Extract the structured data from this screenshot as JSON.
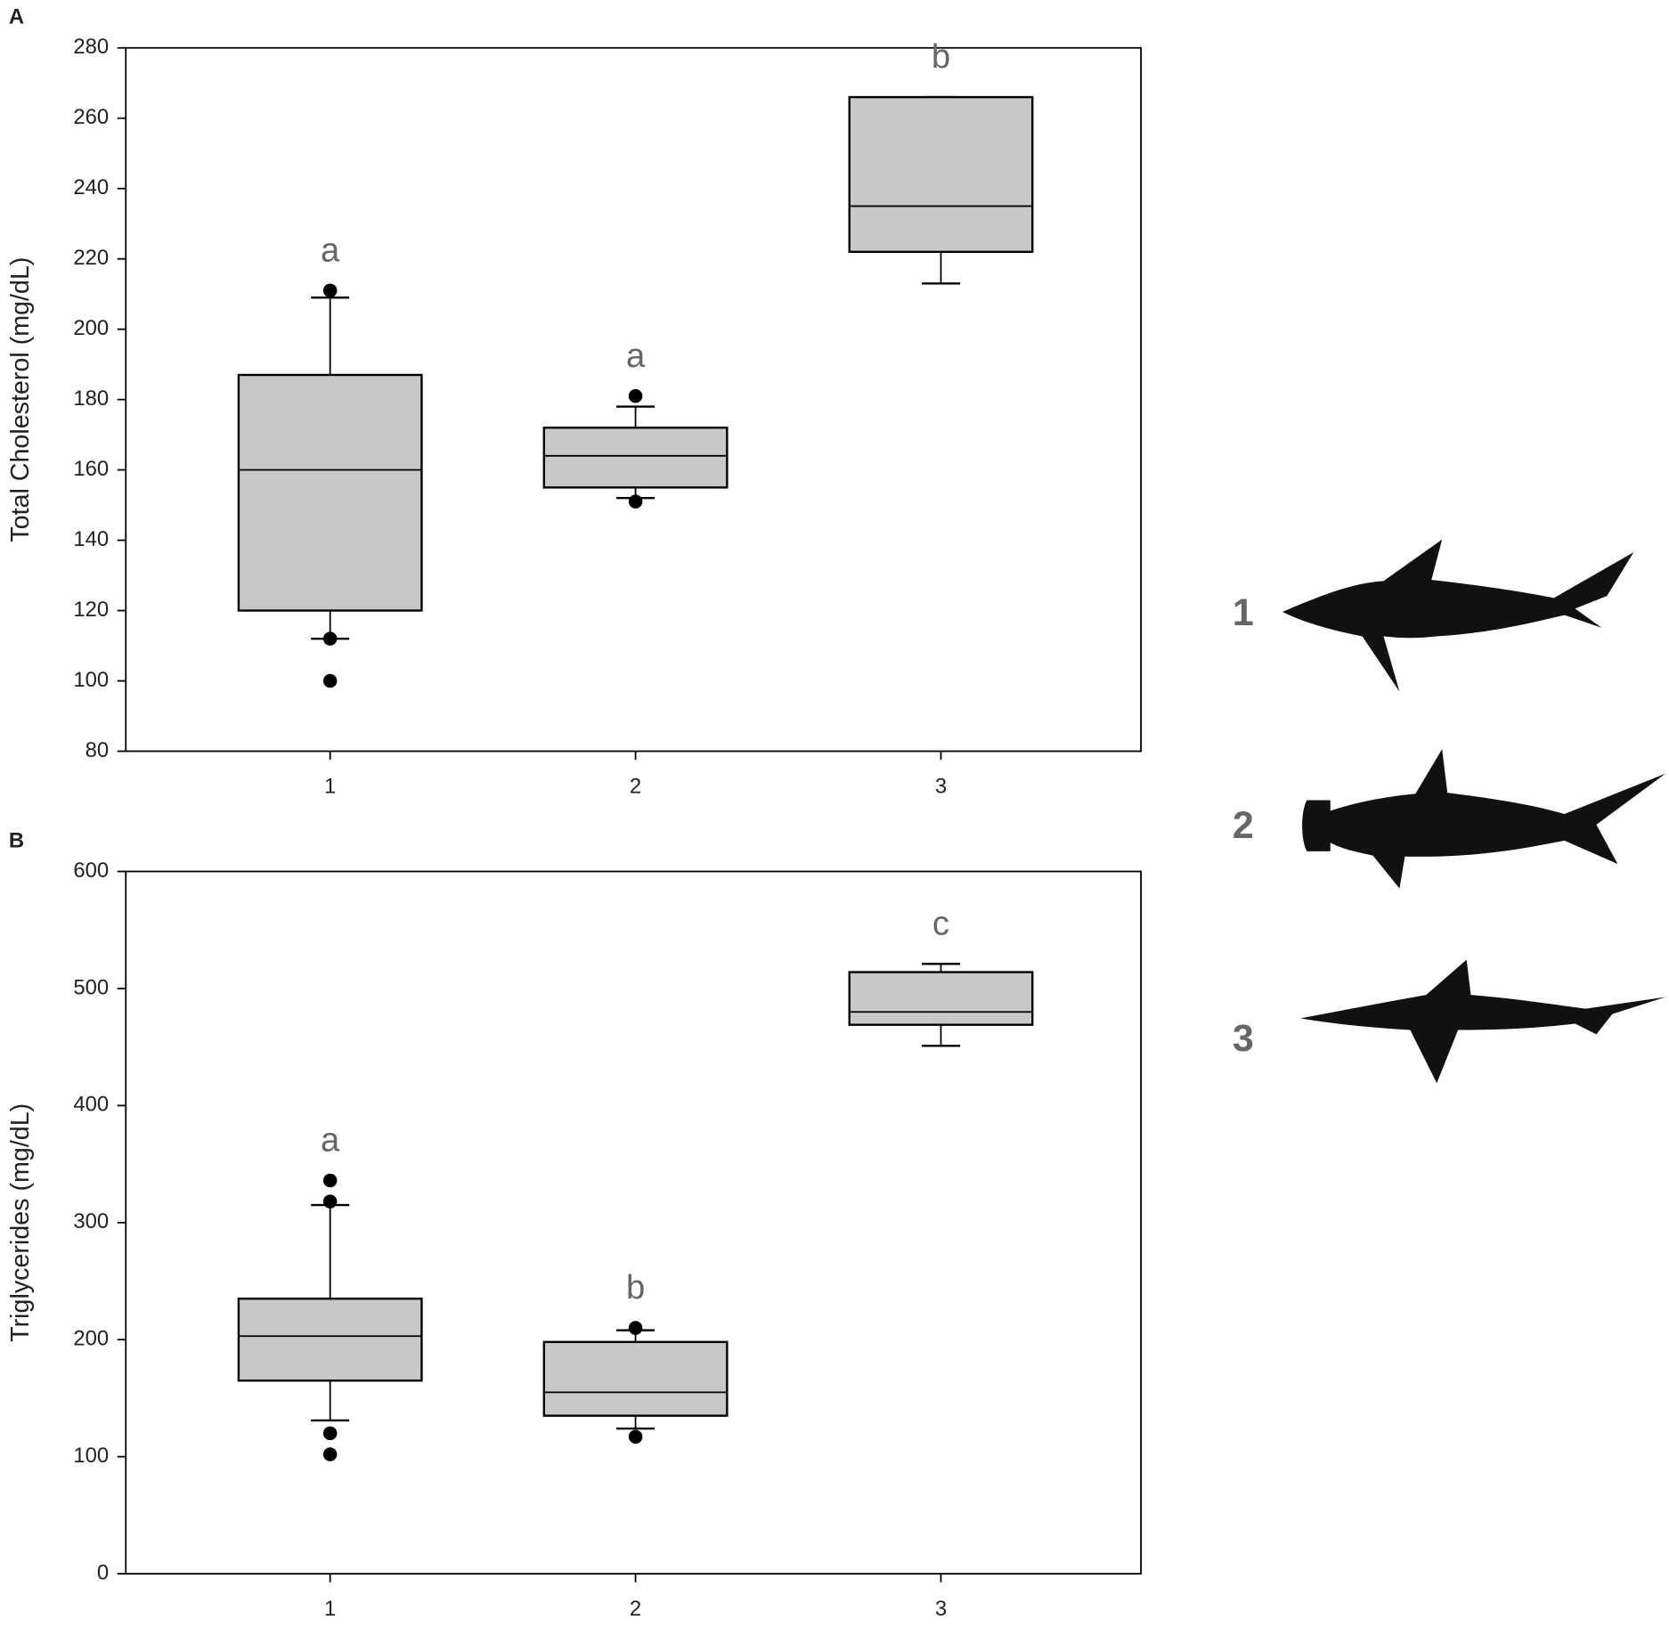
{
  "chart_data": [
    {
      "type": "box",
      "panel": "A",
      "y_label": "Total Cholesterol (mg/dL)",
      "categories": [
        "1",
        "2",
        "3"
      ],
      "boxes": [
        {
          "q1": 120,
          "median": 160,
          "q3": 187,
          "whisker_low": 112,
          "whisker_high": 209,
          "outliers": [
            211,
            112,
            100
          ]
        },
        {
          "q1": 155,
          "median": 164,
          "q3": 172,
          "whisker_low": 152,
          "whisker_high": 178,
          "outliers": [
            181,
            151
          ]
        },
        {
          "q1": 222,
          "median": 235,
          "q3": 266,
          "whisker_low": 213,
          "whisker_high": 266,
          "outliers": []
        }
      ],
      "annotations": [
        "a",
        "a",
        "b"
      ],
      "color": "#c8c8c8",
      "ylim": [
        80,
        280
      ],
      "yticks": [
        80,
        100,
        120,
        140,
        160,
        180,
        200,
        220,
        240,
        260,
        280
      ]
    },
    {
      "type": "box",
      "panel": "B",
      "y_label": "Triglycerides (mg/dL)",
      "categories": [
        "1",
        "2",
        "3"
      ],
      "boxes": [
        {
          "q1": 165,
          "median": 203,
          "q3": 235,
          "whisker_low": 131,
          "whisker_high": 315,
          "outliers": [
            336,
            318,
            120,
            102
          ]
        },
        {
          "q1": 135,
          "median": 155,
          "q3": 198,
          "whisker_low": 124,
          "whisker_high": 208,
          "outliers": [
            210,
            117
          ]
        },
        {
          "q1": 469,
          "median": 480,
          "q3": 514,
          "whisker_low": 451,
          "whisker_high": 521,
          "outliers": []
        }
      ],
      "annotations": [
        "a",
        "b",
        "c"
      ],
      "color": "#c8c8c8",
      "ylim": [
        0,
        600
      ],
      "yticks": [
        0,
        100,
        200,
        300,
        400,
        500,
        600
      ]
    }
  ],
  "species_labels": [
    "1",
    "2",
    "3"
  ]
}
